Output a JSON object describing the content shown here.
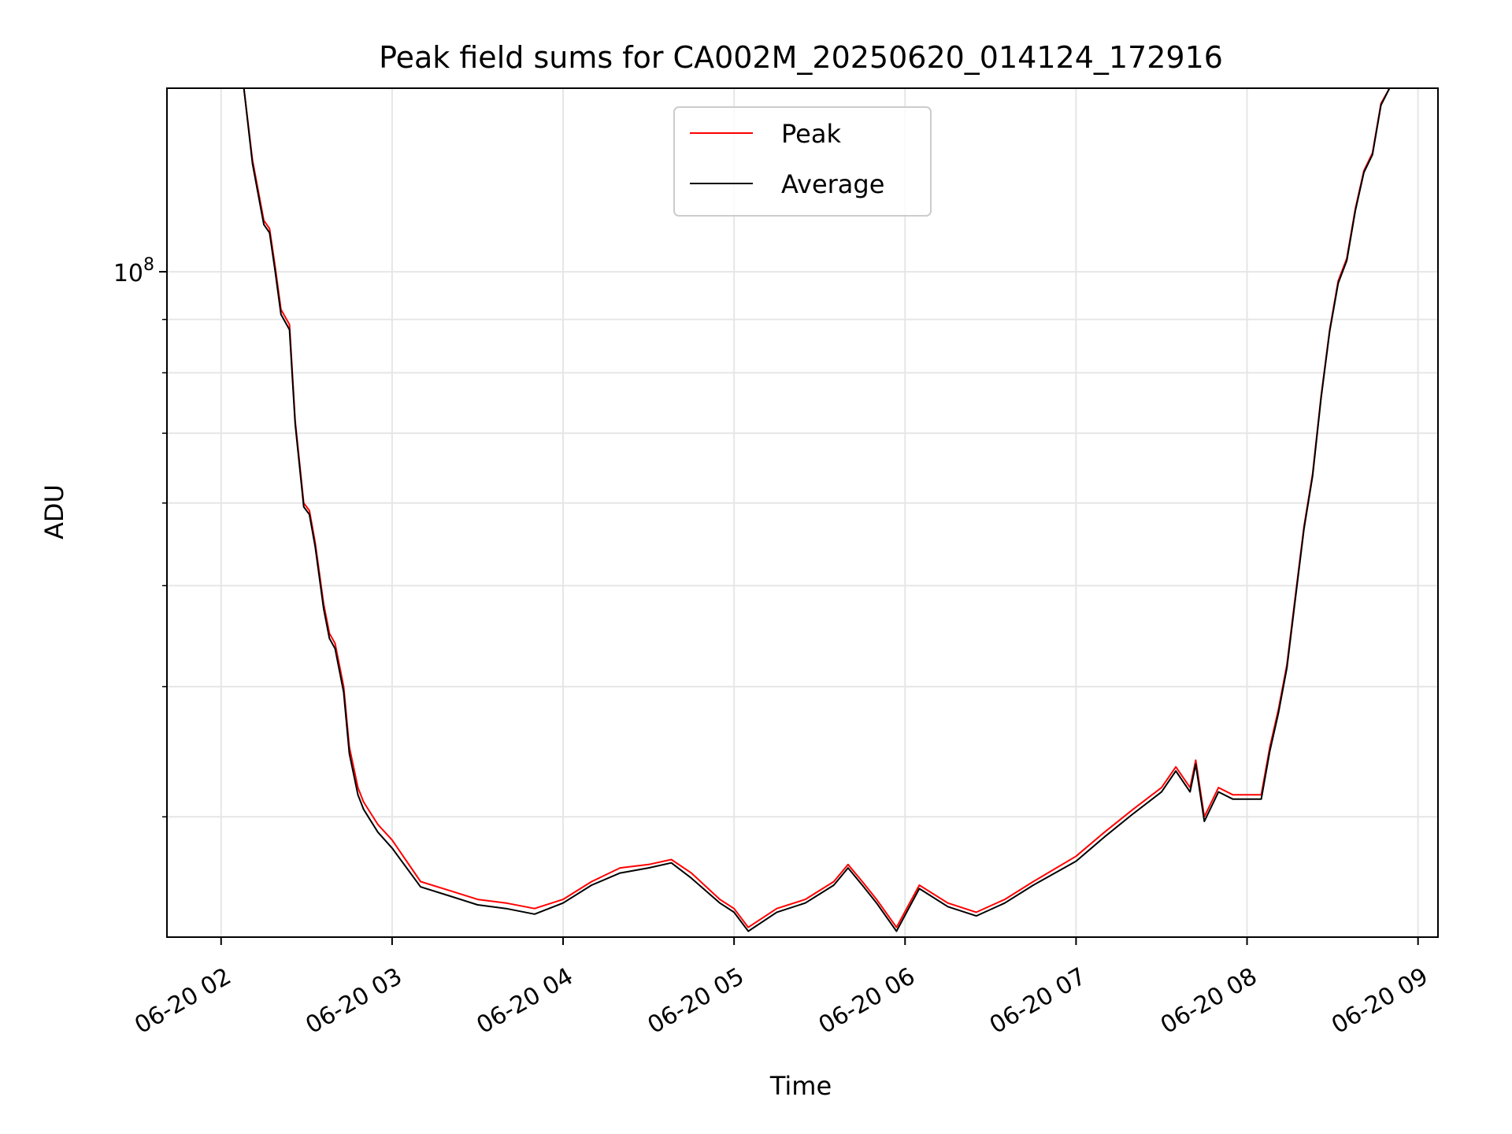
{
  "chart_data": {
    "type": "line",
    "title": "Peak field sums for CA002M_20250620_014124_172916",
    "xlabel": "Time",
    "ylabel": "ADU",
    "yscale": "log",
    "grid": true,
    "legend_position": "upper-center",
    "x_ticks": [
      "06-20 02",
      "06-20 03",
      "06-20 04",
      "06-20 05",
      "06-20 06",
      "06-20 07",
      "06-20 08",
      "06-20 09"
    ],
    "y_ticks": [
      {
        "value": 100000000,
        "label": "10^8"
      }
    ],
    "xlim": [
      "2025-06-20 01:41",
      "2025-06-20 09:07"
    ],
    "ylim": [
      23000000,
      150000000
    ],
    "x": [
      "2025-06-20 01:41",
      "2025-06-20 02:08",
      "2025-06-20 02:11",
      "2025-06-20 02:15",
      "2025-06-20 02:17",
      "2025-06-20 02:19",
      "2025-06-20 02:21",
      "2025-06-20 02:24",
      "2025-06-20 02:26",
      "2025-06-20 02:29",
      "2025-06-20 02:31",
      "2025-06-20 02:33",
      "2025-06-20 02:36",
      "2025-06-20 02:38",
      "2025-06-20 02:40",
      "2025-06-20 02:43",
      "2025-06-20 02:45",
      "2025-06-20 02:48",
      "2025-06-20 02:50",
      "2025-06-20 02:55",
      "2025-06-20 03:00",
      "2025-06-20 03:10",
      "2025-06-20 03:20",
      "2025-06-20 03:30",
      "2025-06-20 03:40",
      "2025-06-20 03:50",
      "2025-06-20 04:00",
      "2025-06-20 04:10",
      "2025-06-20 04:20",
      "2025-06-20 04:30",
      "2025-06-20 04:38",
      "2025-06-20 04:45",
      "2025-06-20 04:55",
      "2025-06-20 05:00",
      "2025-06-20 05:05",
      "2025-06-20 05:15",
      "2025-06-20 05:25",
      "2025-06-20 05:35",
      "2025-06-20 05:40",
      "2025-06-20 05:45",
      "2025-06-20 05:50",
      "2025-06-20 05:57",
      "2025-06-20 06:05",
      "2025-06-20 06:15",
      "2025-06-20 06:25",
      "2025-06-20 06:35",
      "2025-06-20 06:45",
      "2025-06-20 07:00",
      "2025-06-20 07:10",
      "2025-06-20 07:20",
      "2025-06-20 07:30",
      "2025-06-20 07:35",
      "2025-06-20 07:40",
      "2025-06-20 07:42",
      "2025-06-20 07:45",
      "2025-06-20 07:50",
      "2025-06-20 07:55",
      "2025-06-20 08:00",
      "2025-06-20 08:05",
      "2025-06-20 08:08",
      "2025-06-20 08:11",
      "2025-06-20 08:14",
      "2025-06-20 08:17",
      "2025-06-20 08:20",
      "2025-06-20 08:23",
      "2025-06-20 08:26",
      "2025-06-20 08:29",
      "2025-06-20 08:32",
      "2025-06-20 08:35",
      "2025-06-20 08:38",
      "2025-06-20 08:41",
      "2025-06-20 08:44",
      "2025-06-20 08:47",
      "2025-06-20 08:50",
      "2025-06-20 08:52",
      "2025-06-20 09:07"
    ],
    "series": [
      {
        "name": "Peak",
        "color": "#ff0000",
        "values": [
          150000000,
          150000000,
          128000000,
          112000000,
          110000000,
          101000000,
          92000000,
          89000000,
          72000000,
          60000000,
          59000000,
          55000000,
          48000000,
          45000000,
          44000000,
          40000000,
          35000000,
          32000000,
          31000000,
          29500000,
          28500000,
          26000000,
          25500000,
          25000000,
          24800000,
          24500000,
          25000000,
          26000000,
          26800000,
          27000000,
          27300000,
          26500000,
          25000000,
          24500000,
          23500000,
          24500000,
          25000000,
          26000000,
          27000000,
          26000000,
          25000000,
          23500000,
          25800000,
          24800000,
          24300000,
          25000000,
          26000000,
          27500000,
          29000000,
          30500000,
          32000000,
          33500000,
          32000000,
          34000000,
          30000000,
          32000000,
          31500000,
          31500000,
          31500000,
          35000000,
          38000000,
          42000000,
          49000000,
          57000000,
          64000000,
          76000000,
          88000000,
          98000000,
          103000000,
          115000000,
          125000000,
          130000000,
          145000000,
          150000000,
          150000000,
          150000000
        ]
      },
      {
        "name": "Average",
        "color": "#000000",
        "values": [
          150000000,
          150000000,
          127000000,
          111000000,
          109000000,
          100000000,
          91000000,
          88000000,
          71500000,
          59500000,
          58500000,
          54500000,
          47500000,
          44500000,
          43500000,
          39500000,
          34500000,
          31500000,
          30500000,
          29000000,
          28000000,
          25700000,
          25200000,
          24700000,
          24500000,
          24200000,
          24800000,
          25800000,
          26500000,
          26800000,
          27100000,
          26200000,
          24800000,
          24300000,
          23300000,
          24300000,
          24800000,
          25800000,
          26800000,
          25800000,
          24800000,
          23300000,
          25600000,
          24600000,
          24100000,
          24800000,
          25800000,
          27200000,
          28700000,
          30200000,
          31700000,
          33200000,
          31700000,
          33700000,
          29700000,
          31700000,
          31200000,
          31200000,
          31200000,
          34700000,
          37700000,
          41700000,
          48700000,
          56700000,
          63700000,
          75700000,
          87700000,
          97500000,
          102500000,
          114500000,
          124500000,
          129500000,
          144500000,
          150000000,
          150000000,
          150000000
        ]
      }
    ]
  }
}
